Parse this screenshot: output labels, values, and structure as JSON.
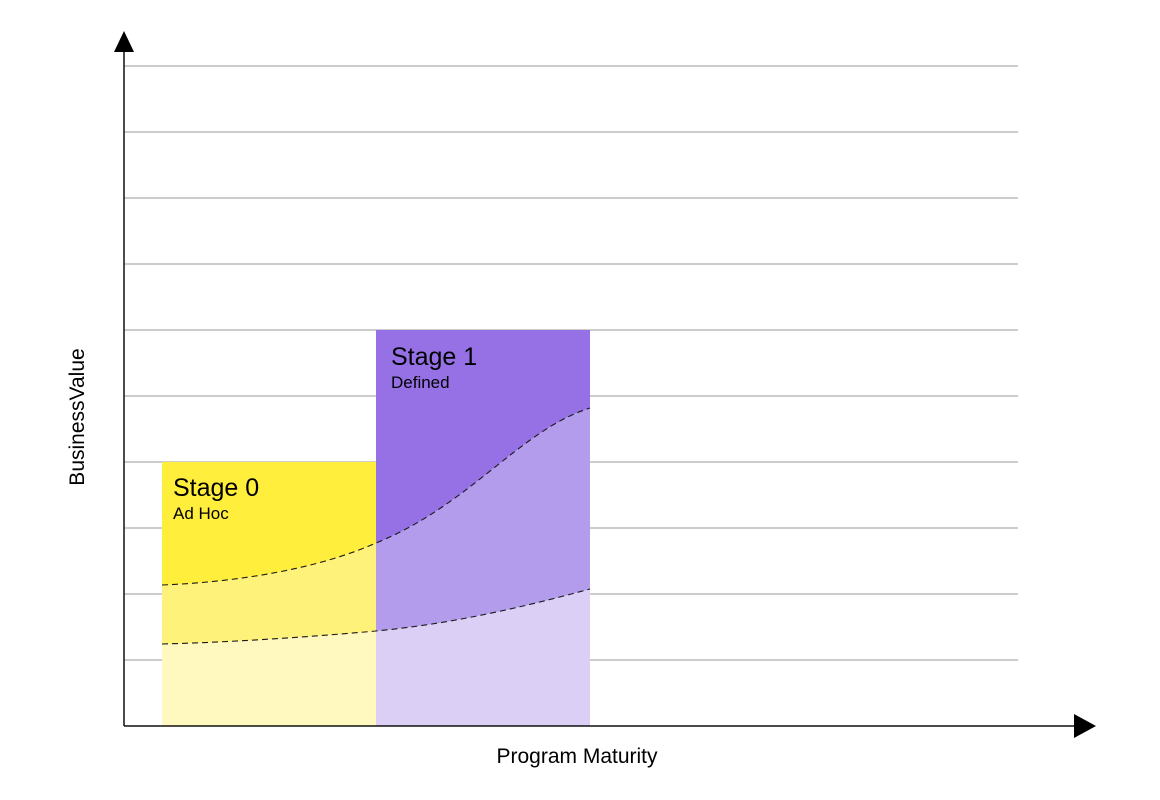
{
  "axes": {
    "x_label": "Program Maturity",
    "y_label": "BusinessValue"
  },
  "stages": [
    {
      "title": "Stage 0",
      "subtitle": "Ad Hoc",
      "colors": {
        "top": "#ffee3b",
        "middle": "#fff27a",
        "bottom": "#fff8bf"
      }
    },
    {
      "title": "Stage 1",
      "subtitle": "Defined",
      "colors": {
        "top": "#9671e6",
        "middle": "#b39cec",
        "bottom": "#dccff6"
      }
    }
  ],
  "gridlines": 10
}
